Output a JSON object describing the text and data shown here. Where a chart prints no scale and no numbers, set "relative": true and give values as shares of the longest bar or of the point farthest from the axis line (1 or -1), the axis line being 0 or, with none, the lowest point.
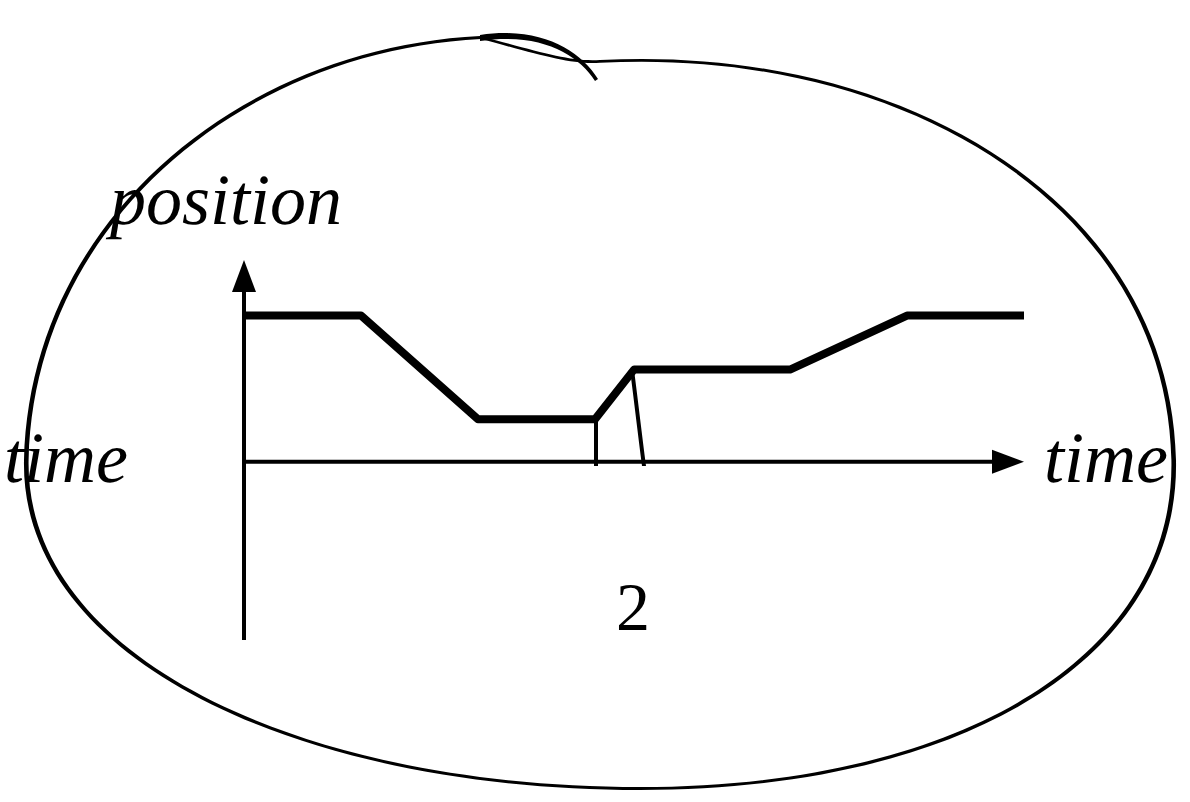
{
  "chart_data": {
    "type": "line",
    "relative": true,
    "ylabel": "position",
    "xlabel": "time",
    "annotations": [
      "time",
      "2"
    ],
    "categories": [
      null,
      null,
      null,
      null,
      null,
      null,
      null,
      null,
      null,
      null,
      null,
      null,
      null,
      null,
      null,
      null,
      null,
      null,
      null,
      null,
      null
    ],
    "series": [
      {
        "color": "#000000",
        "values": [
          1,
          null,
          null,
          1,
          null,
          null,
          0.29,
          null,
          null,
          0.29,
          0.63,
          null,
          null,
          null,
          0.63,
          null,
          null,
          1,
          null,
          null,
          1
        ]
      }
    ],
    "marker": "none",
    "line_style": "solid",
    "grid": false,
    "legend": false
  }
}
